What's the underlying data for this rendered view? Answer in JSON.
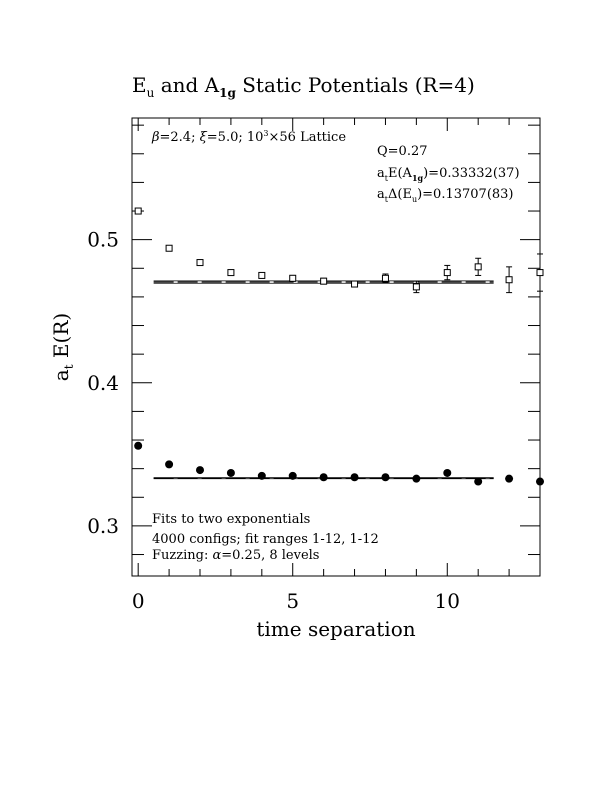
{
  "chart_data": {
    "type": "scatter",
    "title": {
      "main": "E",
      "sub1": "u",
      "mid": " and A",
      "sub2": "1g",
      "rest": " Static Potentials (R=4)"
    },
    "xlabel": "time separation",
    "ylabel": {
      "a": "a",
      "sub": "t",
      "rest": " E(R)"
    },
    "xlim": [
      -0.2,
      13.0
    ],
    "ylim": [
      0.265,
      0.585
    ],
    "x_ticks": [
      0,
      5,
      10
    ],
    "x_tick_labels": [
      "0",
      "5",
      "10"
    ],
    "y_ticks": [
      0.3,
      0.4,
      0.5
    ],
    "y_tick_labels": [
      "0.3",
      "0.4",
      "0.5"
    ],
    "grid": false,
    "annotations": {
      "lattice": {
        "beta": "β",
        "a": "=2.4; ",
        "xi": "ξ",
        "b": "=5.0; 10",
        "sup": "3",
        "c": "×56 Lattice"
      },
      "q": "Q=0.27",
      "fit1": {
        "a": "a",
        "sub1": "t",
        "b": "E(A",
        "sub2": "1g",
        "c": ")=0.33332(37)"
      },
      "fit2": {
        "a": "a",
        "sub1": "t",
        "b": "Δ(E",
        "sub2": "u",
        "c": ")=0.13707(83)"
      },
      "bottom1": "Fits to two exponentials",
      "bottom2": "4000 configs; fit ranges 1-12, 1-12",
      "bottom3": {
        "a": "Fuzzing: ",
        "alpha": "α",
        "b": "=0.25, 8 levels"
      }
    },
    "series": [
      {
        "name": "E",
        "marker": "open-square",
        "x": [
          0,
          1,
          2,
          3,
          4,
          5,
          6,
          7,
          8,
          9,
          10,
          11,
          12,
          13
        ],
        "y": [
          0.52,
          0.494,
          0.484,
          0.477,
          0.475,
          0.473,
          0.471,
          0.469,
          0.473,
          0.467,
          0.477,
          0.481,
          0.472,
          0.477
        ],
        "err": [
          0.001,
          0.001,
          0.001,
          0.001,
          0.001,
          0.002,
          0.002,
          0.002,
          0.003,
          0.004,
          0.005,
          0.006,
          0.009,
          0.013
        ]
      },
      {
        "name": "A",
        "marker": "filled-circle",
        "x": [
          0,
          1,
          2,
          3,
          4,
          5,
          6,
          7,
          8,
          9,
          10,
          11,
          12,
          13
        ],
        "y": [
          0.356,
          0.343,
          0.339,
          0.337,
          0.335,
          0.335,
          0.334,
          0.334,
          0.334,
          0.333,
          0.337,
          0.331,
          0.333,
          0.331
        ],
        "err": [
          0.0005,
          0.0005,
          0.0005,
          0.0005,
          0.0005,
          0.0005,
          0.0005,
          0.0005,
          0.0005,
          0.0005,
          0.0005,
          0.0005,
          0.0005,
          0.0005
        ]
      }
    ],
    "fit_lines": [
      {
        "value": 0.47039,
        "band": [
          0.46956,
          0.47122
        ],
        "x_range": [
          0.5,
          11.5
        ]
      },
      {
        "value": 0.33332,
        "band": [
          0.33295,
          0.33369
        ],
        "x_range": [
          0.5,
          11.5
        ]
      }
    ]
  }
}
